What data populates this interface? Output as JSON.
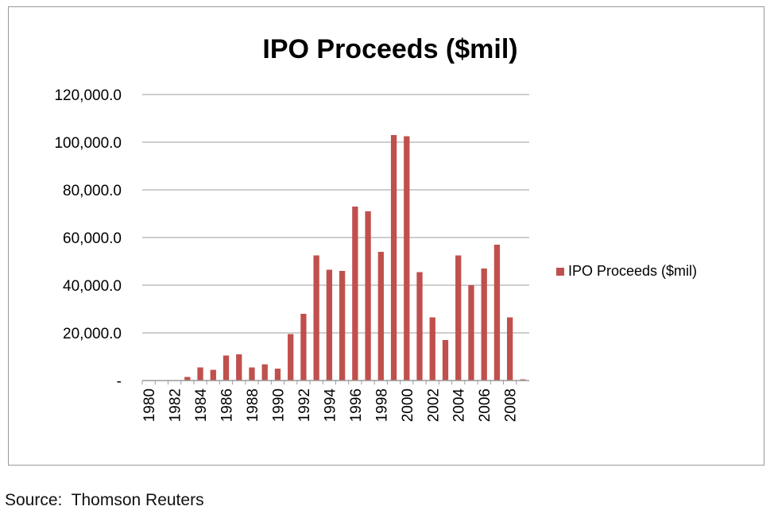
{
  "source_note": "Source:  Thomson Reuters",
  "chart_data": {
    "type": "bar",
    "title": "IPO Proceeds ($mil)",
    "xlabel": "",
    "ylabel": "",
    "ylim": [
      0,
      120000
    ],
    "yticks": [
      0,
      20000,
      40000,
      60000,
      80000,
      100000,
      120000
    ],
    "ytick_labels": [
      "-",
      "20,000.0",
      "40,000.0",
      "60,000.0",
      "80,000.0",
      "100,000.0",
      "120,000.0"
    ],
    "categories": [
      "1980",
      "1981",
      "1982",
      "1983",
      "1984",
      "1985",
      "1986",
      "1987",
      "1988",
      "1989",
      "1990",
      "1991",
      "1992",
      "1993",
      "1994",
      "1995",
      "1996",
      "1997",
      "1998",
      "1999",
      "2000",
      "2001",
      "2002",
      "2003",
      "2004",
      "2005",
      "2006",
      "2007",
      "2008",
      "2009"
    ],
    "xtick_labels": [
      "1980",
      "",
      "1982",
      "",
      "1984",
      "",
      "1986",
      "",
      "1988",
      "",
      "1990",
      "",
      "1992",
      "",
      "1994",
      "",
      "1996",
      "",
      "1998",
      "",
      "2000",
      "",
      "2002",
      "",
      "2004",
      "",
      "2006",
      "",
      "2008",
      ""
    ],
    "series": [
      {
        "name": "IPO Proceeds ($mil)",
        "color": "#c0504d",
        "values": [
          0,
          0,
          0,
          1500,
          5500,
          4500,
          10500,
          11000,
          5500,
          6800,
          5000,
          19500,
          28000,
          52500,
          46500,
          46000,
          73000,
          71000,
          54000,
          103000,
          102500,
          45500,
          26500,
          17000,
          52500,
          40000,
          47000,
          57000,
          26500,
          500
        ]
      }
    ],
    "grid": true,
    "legend_position": "right"
  }
}
